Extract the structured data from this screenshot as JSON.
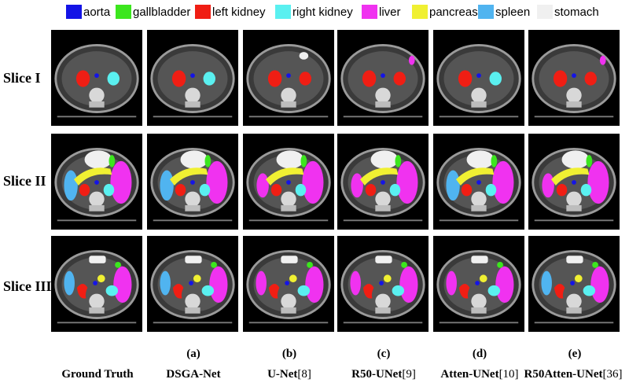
{
  "legend": [
    {
      "label": "aorta",
      "color": "#1414e6"
    },
    {
      "label": "gallbladder",
      "color": "#3ce61e"
    },
    {
      "label": "left kidney",
      "color": "#f01e14"
    },
    {
      "label": "right kidney",
      "color": "#5af0f0"
    },
    {
      "label": "liver",
      "color": "#f032f0"
    },
    {
      "label": "pancreas",
      "color": "#f0f032"
    },
    {
      "label": "spleen",
      "color": "#50b4f0"
    },
    {
      "label": "stomach",
      "color": "#f0f0f0"
    }
  ],
  "rows": [
    "Slice I",
    "Slice II",
    "Slice III"
  ],
  "sublabels": [
    "(a)",
    "(b)",
    "(c)",
    "(d)",
    "(e)"
  ],
  "columns": [
    {
      "name": "Ground Truth",
      "ref": ""
    },
    {
      "name": "DSGA-Net",
      "ref": ""
    },
    {
      "name": "U-Net",
      "ref": "[8]"
    },
    {
      "name": "R50-UNet",
      "ref": "[9]"
    },
    {
      "name": "Atten-UNet",
      "ref": "[10]"
    },
    {
      "name": "R50Atten-UNet",
      "ref": "[36]"
    }
  ]
}
